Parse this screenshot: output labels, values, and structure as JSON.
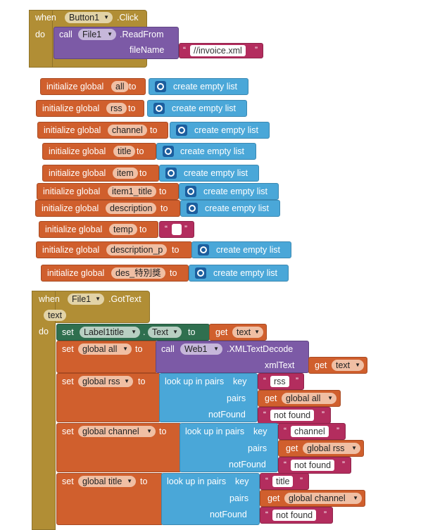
{
  "click_event": {
    "when": "when",
    "component": "Button1",
    "event": ".Click",
    "do": "do",
    "call": "call",
    "call_component": "File1",
    "call_method": ".ReadFrom",
    "param": "fileName",
    "file_value": "//invoice.xml"
  },
  "globals": [
    {
      "prefix": "initialize global",
      "name": "all",
      "to": "to",
      "value": "create empty list"
    },
    {
      "prefix": "initialize global",
      "name": "rss",
      "to": "to",
      "value": "create empty list"
    },
    {
      "prefix": "initialize global",
      "name": "channel",
      "to": "to",
      "value": "create empty list"
    },
    {
      "prefix": "initialize global",
      "name": "title",
      "to": "to",
      "value": "create empty list"
    },
    {
      "prefix": "initialize global",
      "name": "item",
      "to": "to",
      "value": "create empty list"
    },
    {
      "prefix": "initialize global",
      "name": "item1_title",
      "to": "to",
      "value": "create empty list"
    },
    {
      "prefix": "initialize global",
      "name": "description",
      "to": "to",
      "value": "create empty list"
    },
    {
      "prefix": "initialize global",
      "name": "temp",
      "to": "to",
      "value": ""
    },
    {
      "prefix": "initialize global",
      "name": "description_p",
      "to": "to",
      "value": "create empty list"
    },
    {
      "prefix": "initialize global",
      "name": "des_特別獎",
      "to": "to",
      "value": "create empty list"
    }
  ],
  "gottext_event": {
    "when": "when",
    "component": "File1",
    "event": ".GotText",
    "param": "text",
    "do": "do"
  },
  "set_label": {
    "set": "set",
    "component": "Label1title",
    "dot": ".",
    "property": "Text",
    "to": "to",
    "get": "get",
    "var": "text"
  },
  "set_all": {
    "set": "set",
    "var": "global all",
    "to": "to",
    "call": "call",
    "component": "Web1",
    "method": ".XMLTextDecode",
    "param": "xmlText",
    "get": "get",
    "get_var": "text"
  },
  "lookups": [
    {
      "set": "set",
      "var": "global rss",
      "to": "to",
      "look": "look up in pairs",
      "key_label": "key",
      "key": "rss",
      "pairs_label": "pairs",
      "get": "get",
      "pairs_var": "global all",
      "nf_label": "notFound",
      "nf": "not found"
    },
    {
      "set": "set",
      "var": "global channel",
      "to": "to",
      "look": "look up in pairs",
      "key_label": "key",
      "key": "channel",
      "pairs_label": "pairs",
      "get": "get",
      "pairs_var": "global rss",
      "nf_label": "notFound",
      "nf": "not found"
    },
    {
      "set": "set",
      "var": "global title",
      "to": "to",
      "look": "look up in pairs",
      "key_label": "key",
      "key": "title",
      "pairs_label": "pairs",
      "get": "get",
      "pairs_var": "global channel",
      "nf_label": "notFound",
      "nf": "not found"
    }
  ]
}
